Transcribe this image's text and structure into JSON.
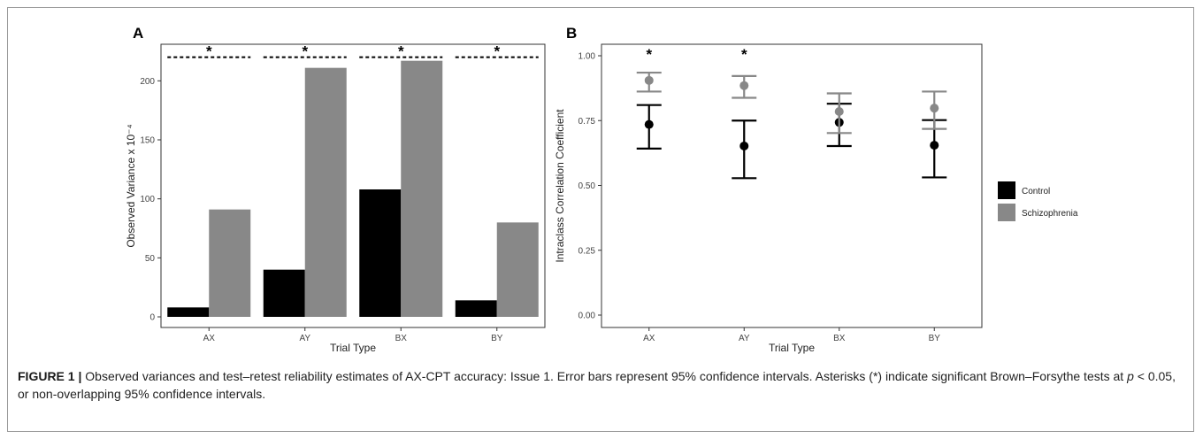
{
  "colors": {
    "control": "#000000",
    "schizophrenia": "#888888",
    "axis": "#333333"
  },
  "caption": {
    "label": "FIGURE 1 |",
    "text": " Observed variances and test–retest reliability estimates of AX-CPT accuracy: Issue 1. Error bars represent 95% confidence intervals. Asterisks (*) indicate significant Brown–Forsythe tests at ",
    "p_symbol": "p",
    "text_end": " < 0.05, or non-overlapping 95% confidence intervals."
  },
  "legend": {
    "items": [
      "Control",
      "Schizophrenia"
    ]
  },
  "chart_data": [
    {
      "type": "bar",
      "panel": "A",
      "categories": [
        "AX",
        "AY",
        "BX",
        "BY"
      ],
      "series": [
        {
          "name": "Control",
          "values": [
            8,
            40,
            108,
            14
          ]
        },
        {
          "name": "Schizophrenia",
          "values": [
            91,
            211,
            217,
            80
          ]
        }
      ],
      "xlabel": "Trial Type",
      "ylabel": "Observed Variance x 10⁻⁴",
      "ylim": [
        0,
        225
      ],
      "yticks": [
        0,
        50,
        100,
        150,
        200
      ],
      "significance": {
        "marker": "*",
        "y": 220,
        "categories": [
          "AX",
          "AY",
          "BX",
          "BY"
        ]
      }
    },
    {
      "type": "scatter",
      "panel": "B",
      "categories": [
        "AX",
        "AY",
        "BX",
        "BY"
      ],
      "series": [
        {
          "name": "Control",
          "values": [
            0.735,
            0.652,
            0.743,
            0.655
          ],
          "lower": [
            0.642,
            0.528,
            0.652,
            0.531
          ],
          "upper": [
            0.81,
            0.75,
            0.815,
            0.752
          ]
        },
        {
          "name": "Schizophrenia",
          "values": [
            0.905,
            0.885,
            0.785,
            0.798
          ],
          "lower": [
            0.862,
            0.838,
            0.702,
            0.718
          ],
          "upper": [
            0.935,
            0.922,
            0.855,
            0.862
          ]
        }
      ],
      "xlabel": "Trial Type",
      "ylabel": "Intraclass Correlation Coefficient",
      "ylim": [
        0,
        1
      ],
      "yticks": [
        "0.00",
        "0.25",
        "0.50",
        "0.75",
        "1.00"
      ],
      "significance": {
        "marker": "*",
        "categories": [
          "AX",
          "AY"
        ]
      }
    }
  ]
}
